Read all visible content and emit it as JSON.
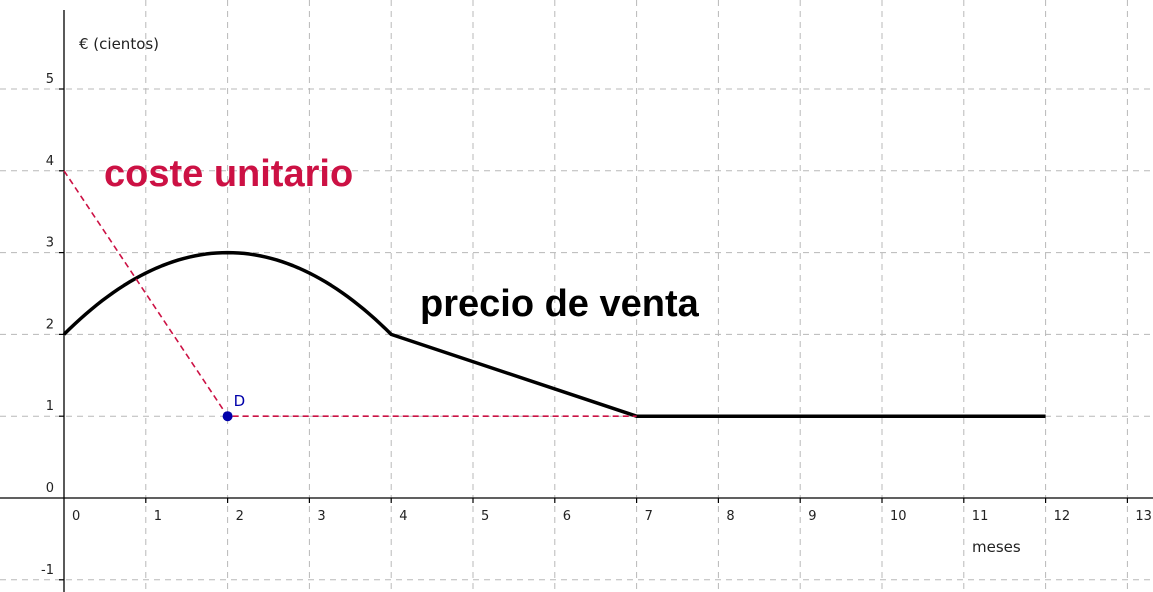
{
  "chart_data": {
    "type": "line",
    "xlabel": "meses",
    "ylabel": "€ (cientos)",
    "xlim": [
      -0.1,
      13.2
    ],
    "ylim": [
      -1.1,
      5.85
    ],
    "grid": true,
    "x_ticks": [
      0,
      1,
      2,
      3,
      4,
      5,
      6,
      7,
      8,
      9,
      10,
      11,
      12,
      13
    ],
    "y_ticks": [
      -1,
      0,
      1,
      2,
      3,
      4,
      5
    ],
    "series": [
      {
        "name": "precio de venta",
        "color": "#000000",
        "style": "solid",
        "pieces": [
          {
            "kind": "parabola",
            "x_from": 0,
            "x_to": 4,
            "vertex": [
              2,
              3
            ],
            "through": [
              0,
              2
            ]
          },
          {
            "kind": "segment",
            "points": [
              [
                4,
                2
              ],
              [
                7,
                1
              ]
            ]
          },
          {
            "kind": "segment",
            "points": [
              [
                7,
                1
              ],
              [
                12,
                1
              ]
            ]
          }
        ]
      },
      {
        "name": "coste unitario",
        "color": "#cc1144",
        "style": "dashed",
        "points": [
          [
            0,
            4
          ],
          [
            2,
            1
          ],
          [
            7,
            1
          ]
        ]
      }
    ],
    "point": {
      "label": "D",
      "x": 2,
      "y": 1,
      "color": "#0000aa"
    },
    "annotations": {
      "coste_unitario": {
        "text": "coste unitario",
        "color": "#cc1144"
      },
      "precio_de_venta": {
        "text": "precio de venta",
        "color": "#000000"
      }
    }
  }
}
